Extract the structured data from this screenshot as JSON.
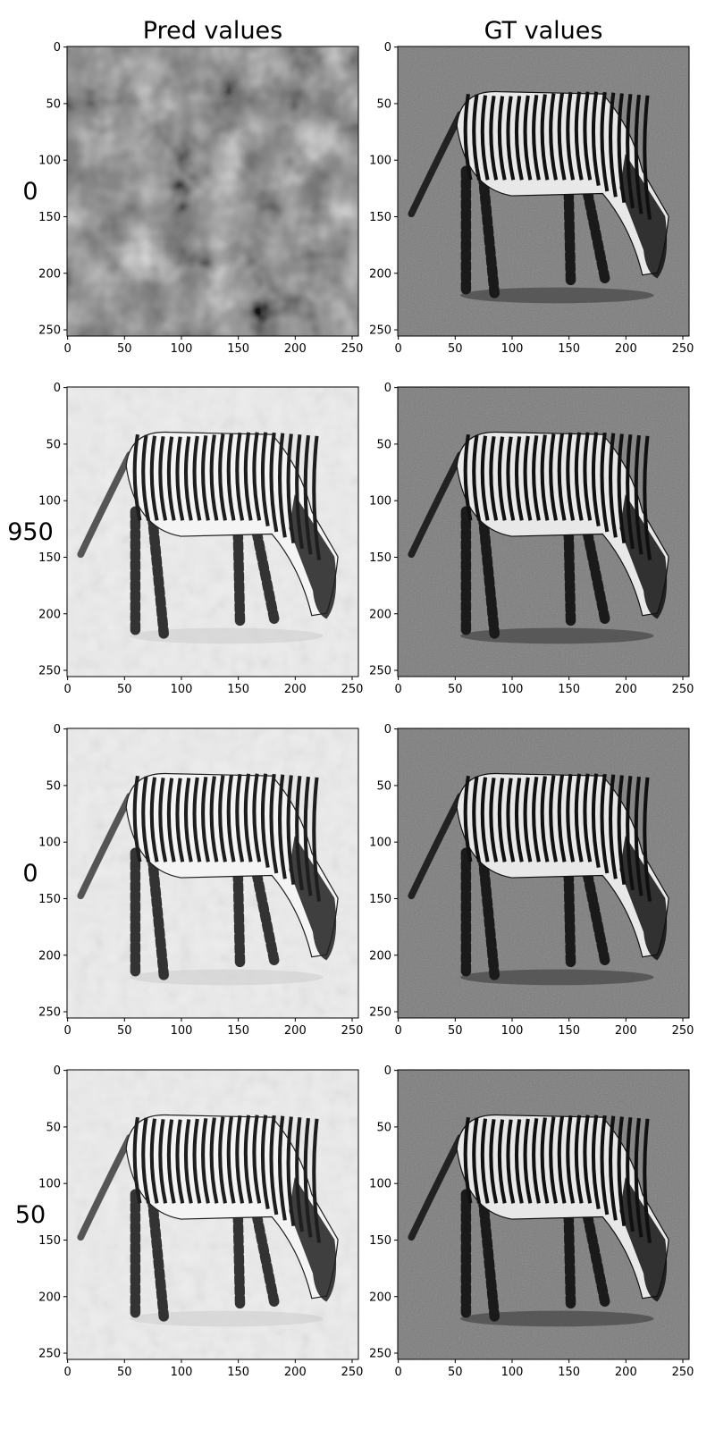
{
  "figure": {
    "background": "#ffffff",
    "column_titles": [
      "Pred values",
      "GT values"
    ],
    "row_labels": [
      "0",
      "950",
      "0",
      "50"
    ]
  },
  "chart_data": {
    "type": "heatmap",
    "colormap": "gray",
    "image_size": [
      256,
      256
    ],
    "xlim": [
      0,
      255
    ],
    "ylim": [
      255,
      0
    ],
    "x_ticks": [
      0,
      50,
      100,
      150,
      200,
      250
    ],
    "y_ticks": [
      0,
      50,
      100,
      150,
      200,
      250
    ],
    "grid": false,
    "panels": [
      {
        "row": 0,
        "col": 0,
        "column_title": "Pred values",
        "row_label": "0",
        "content": "noise"
      },
      {
        "row": 0,
        "col": 1,
        "column_title": "GT values",
        "row_label": "0",
        "content": "zebra"
      },
      {
        "row": 1,
        "col": 0,
        "column_title": "Pred values",
        "row_label": "950",
        "content": "zebra-light"
      },
      {
        "row": 1,
        "col": 1,
        "column_title": "GT values",
        "row_label": "950",
        "content": "zebra"
      },
      {
        "row": 2,
        "col": 0,
        "column_title": "Pred values",
        "row_label": "0",
        "content": "zebra-light"
      },
      {
        "row": 2,
        "col": 1,
        "column_title": "GT values",
        "row_label": "0",
        "content": "zebra"
      },
      {
        "row": 3,
        "col": 0,
        "column_title": "Pred values",
        "row_label": "50",
        "content": "zebra-light"
      },
      {
        "row": 3,
        "col": 1,
        "column_title": "GT values",
        "row_label": "50",
        "content": "zebra"
      }
    ]
  }
}
